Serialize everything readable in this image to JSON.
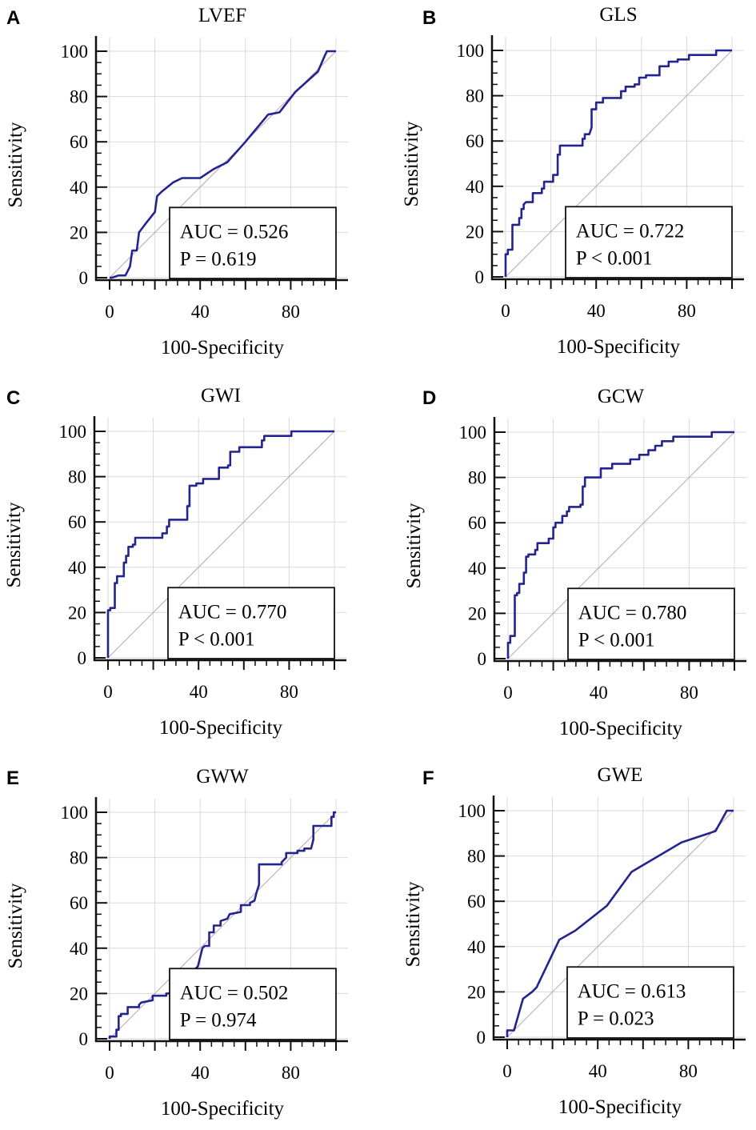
{
  "colors": {
    "curve": "#24248f",
    "diagonal": "#bfa6ad",
    "grid": "#d9d9d9",
    "axis": "#111111"
  },
  "chart_data": [
    {
      "type": "line",
      "panel": "A",
      "title": "LVEF",
      "xlabel": "100-Specificity",
      "ylabel": "Sensitivity",
      "xlim": [
        0,
        100
      ],
      "ylim": [
        0,
        100
      ],
      "xticks": [
        "0",
        "40",
        "80"
      ],
      "yticks": [
        "0",
        "20",
        "40",
        "60",
        "80",
        "100"
      ],
      "grid": true,
      "auc": "AUC = 0.526",
      "p": "P = 0.619",
      "legend": "bottom-right",
      "x": [
        0,
        1,
        4,
        7,
        9,
        10,
        12,
        13,
        16,
        20,
        21,
        23,
        28,
        32,
        40,
        46,
        52,
        60,
        70,
        75,
        82,
        92,
        95,
        96,
        100
      ],
      "y": [
        0,
        0,
        1,
        1,
        5,
        12,
        12,
        20,
        24,
        29,
        36,
        38,
        42,
        44,
        44,
        48,
        51,
        60,
        72,
        73,
        82,
        91,
        98,
        100,
        100
      ]
    },
    {
      "type": "line",
      "panel": "B",
      "title": "GLS",
      "xlabel": "100-Specificity",
      "ylabel": "Sensitivity",
      "xlim": [
        0,
        100
      ],
      "ylim": [
        0,
        100
      ],
      "xticks": [
        "0",
        "40",
        "80"
      ],
      "yticks": [
        "0",
        "20",
        "40",
        "60",
        "80",
        "100"
      ],
      "grid": true,
      "auc": "AUC = 0.722",
      "p": "P < 0.001",
      "legend": "bottom-right",
      "x": [
        0,
        0,
        1,
        1,
        3,
        3,
        6,
        6,
        7,
        7,
        8,
        8,
        9,
        12,
        12,
        16,
        16,
        17,
        17,
        21,
        21,
        23,
        23,
        24,
        24,
        34,
        34,
        35,
        35,
        37,
        38,
        38,
        40,
        40,
        43,
        43,
        51,
        51,
        53,
        53,
        57,
        57,
        59,
        59,
        62,
        62,
        68,
        68,
        72,
        72,
        76,
        76,
        81,
        81,
        93,
        93,
        100
      ],
      "y": [
        0,
        10,
        10,
        12,
        12,
        23,
        23,
        26,
        26,
        30,
        30,
        32,
        33,
        33,
        37,
        37,
        39,
        39,
        42,
        42,
        45,
        45,
        54,
        54,
        58,
        58,
        61,
        61,
        63,
        63,
        66,
        74,
        74,
        77,
        77,
        79,
        79,
        82,
        82,
        84,
        84,
        85,
        85,
        88,
        88,
        89,
        89,
        93,
        93,
        95,
        95,
        96,
        96,
        98,
        98,
        100,
        100
      ]
    },
    {
      "type": "line",
      "panel": "C",
      "title": "GWI",
      "xlabel": "100-Specificity",
      "ylabel": "Sensitivity",
      "xlim": [
        0,
        100
      ],
      "ylim": [
        0,
        100
      ],
      "xticks": [
        "0",
        "40",
        "80"
      ],
      "yticks": [
        "0",
        "20",
        "40",
        "60",
        "80",
        "100"
      ],
      "grid": true,
      "auc": "AUC = 0.770",
      "p": "P < 0.001",
      "legend": "bottom-right",
      "x": [
        0,
        0,
        1,
        1,
        3,
        3,
        4,
        4,
        7,
        7,
        8,
        8,
        9,
        9,
        11,
        11,
        12,
        12,
        24,
        24,
        26,
        26,
        27,
        27,
        35,
        35,
        36,
        36,
        39,
        39,
        42,
        42,
        49,
        49,
        53,
        53,
        54,
        54,
        58,
        58,
        68,
        68,
        69,
        69,
        81,
        81,
        100
      ],
      "y": [
        0,
        21,
        21,
        22,
        22,
        33,
        33,
        36,
        36,
        42,
        42,
        45,
        45,
        49,
        49,
        50,
        50,
        53,
        53,
        55,
        55,
        58,
        58,
        61,
        61,
        67,
        67,
        76,
        76,
        77,
        77,
        79,
        79,
        84,
        84,
        85,
        85,
        91,
        91,
        93,
        93,
        96,
        96,
        98,
        98,
        100,
        100
      ]
    },
    {
      "type": "line",
      "panel": "D",
      "title": "GCW",
      "xlabel": "100-Specificity",
      "ylabel": "Sensitivity",
      "xlim": [
        0,
        100
      ],
      "ylim": [
        0,
        100
      ],
      "xticks": [
        "0",
        "40",
        "80"
      ],
      "yticks": [
        "0",
        "20",
        "40",
        "60",
        "80",
        "100"
      ],
      "grid": true,
      "auc": "AUC = 0.780",
      "p": "P < 0.001",
      "legend": "bottom-right",
      "x": [
        0,
        0,
        1,
        1,
        3,
        3,
        4,
        4,
        5,
        5,
        7,
        7,
        8,
        8,
        9,
        9,
        12,
        12,
        13,
        13,
        18,
        18,
        20,
        20,
        21,
        21,
        24,
        24,
        26,
        26,
        27,
        27,
        32,
        32,
        33,
        33,
        34,
        34,
        41,
        41,
        46,
        46,
        54,
        54,
        58,
        58,
        62,
        62,
        65,
        65,
        68,
        68,
        73,
        73,
        90,
        90,
        100
      ],
      "y": [
        0,
        7,
        7,
        10,
        10,
        28,
        28,
        29,
        29,
        33,
        33,
        38,
        38,
        45,
        45,
        46,
        46,
        48,
        48,
        51,
        51,
        53,
        53,
        58,
        58,
        60,
        60,
        63,
        63,
        65,
        65,
        67,
        67,
        68,
        68,
        76,
        76,
        80,
        80,
        84,
        84,
        86,
        86,
        88,
        88,
        90,
        90,
        92,
        92,
        94,
        94,
        96,
        96,
        98,
        98,
        100,
        100
      ]
    },
    {
      "type": "line",
      "panel": "E",
      "title": "GWW",
      "xlabel": "100-Specificity",
      "ylabel": "Sensitivity",
      "xlim": [
        0,
        100
      ],
      "ylim": [
        0,
        100
      ],
      "xticks": [
        "0",
        "40",
        "80"
      ],
      "yticks": [
        "0",
        "20",
        "40",
        "60",
        "80",
        "100"
      ],
      "grid": true,
      "auc": "AUC = 0.502",
      "p": "P = 0.974",
      "legend": "bottom-right",
      "x": [
        0,
        0,
        3,
        3,
        4,
        4,
        5,
        5,
        8,
        8,
        13,
        13,
        14,
        19,
        19,
        25,
        25,
        27,
        33,
        39,
        40,
        41,
        42,
        44,
        44,
        46,
        46,
        49,
        49,
        52,
        53,
        58,
        58,
        62,
        62,
        64,
        65,
        66,
        66,
        76,
        76,
        78,
        78,
        83,
        83,
        86,
        86,
        89,
        90,
        90,
        98,
        98,
        99,
        99,
        100
      ],
      "y": [
        0,
        1,
        1,
        4,
        4,
        10,
        10,
        11,
        11,
        14,
        14,
        15,
        16,
        17,
        19,
        19,
        20,
        20,
        26,
        32,
        36,
        40,
        41,
        41,
        47,
        47,
        50,
        50,
        52,
        53,
        55,
        56,
        59,
        59,
        60,
        61,
        65,
        68,
        77,
        77,
        78,
        80,
        82,
        82,
        83,
        83,
        84,
        84,
        88,
        94,
        94,
        98,
        98,
        100,
        100
      ]
    },
    {
      "type": "line",
      "panel": "F",
      "title": "GWE",
      "xlabel": "100-Specificity",
      "ylabel": "Sensitivity",
      "xlim": [
        0,
        100
      ],
      "ylim": [
        0,
        100
      ],
      "xticks": [
        "0",
        "40",
        "80"
      ],
      "yticks": [
        "0",
        "20",
        "40",
        "60",
        "80",
        "100"
      ],
      "grid": true,
      "auc": "AUC = 0.613",
      "p": "P = 0.023",
      "legend": "bottom-right",
      "x": [
        0,
        0,
        3,
        7,
        11,
        13,
        23,
        30,
        44,
        55,
        77,
        92,
        97,
        100
      ],
      "y": [
        0,
        3,
        3,
        17,
        20,
        22,
        43,
        47,
        58,
        73,
        86,
        91,
        100,
        100
      ]
    }
  ]
}
